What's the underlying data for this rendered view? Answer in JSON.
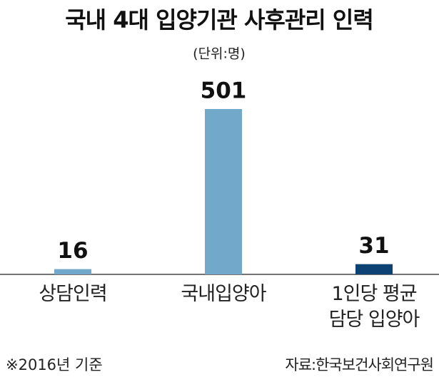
{
  "chart_data": {
    "type": "bar",
    "title": "국내 4대 입양기관 사후관리 인력",
    "subtitle": "(단위:명)",
    "categories": [
      "상담인력",
      "국내입양아",
      "1인당 평균\n담당 입양아"
    ],
    "values": [
      16,
      501,
      31
    ],
    "colors": [
      "#72a9cb",
      "#72a9cb",
      "#0d4275"
    ],
    "notes": [
      "※2016년 기준",
      "자료:한국보건사회연구원"
    ]
  }
}
